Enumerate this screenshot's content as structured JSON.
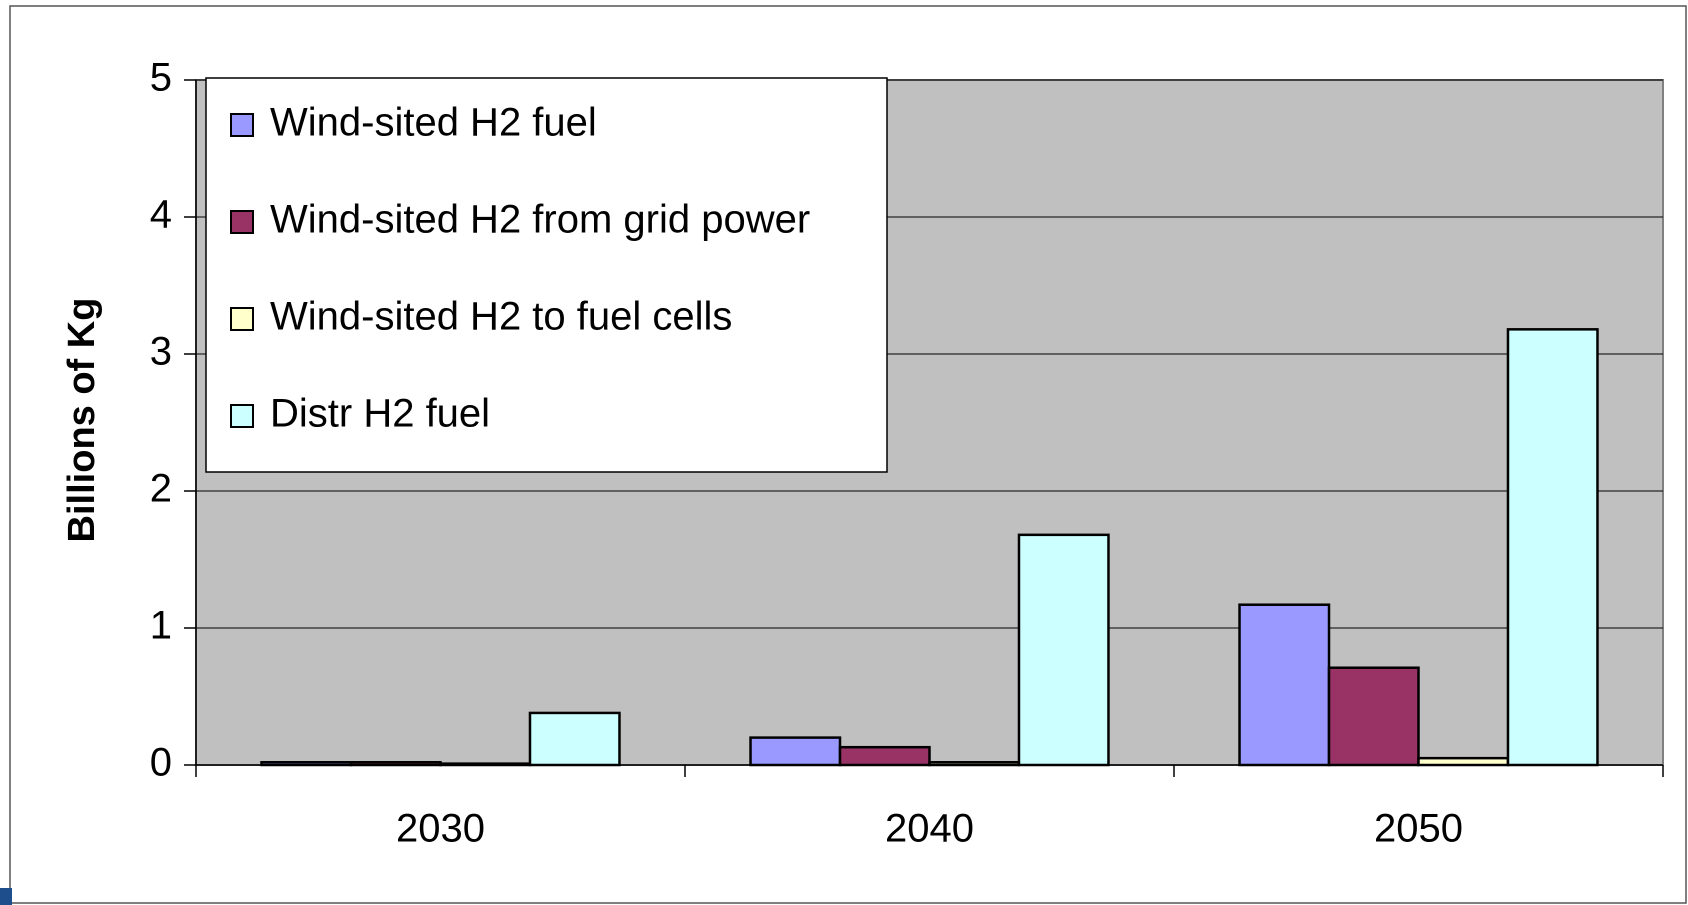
{
  "chart_data": {
    "type": "bar",
    "y_label": "Billions of Kg",
    "categories": [
      "2030",
      "2040",
      "2050"
    ],
    "series": [
      {
        "name": "Wind-sited H2 fuel",
        "color": "#9999ff",
        "values": [
          0.02,
          0.2,
          1.17
        ]
      },
      {
        "name": "Wind-sited H2 from grid power",
        "color": "#993366",
        "values": [
          0.02,
          0.13,
          0.71
        ]
      },
      {
        "name": "Wind-sited H2 to fuel cells",
        "color": "#ffffcc",
        "values": [
          0.01,
          0.02,
          0.05
        ]
      },
      {
        "name": "Distr H2 fuel",
        "color": "#ccffff",
        "values": [
          0.38,
          1.68,
          3.18
        ]
      }
    ],
    "ylim": [
      0,
      5
    ],
    "yticks": [
      0,
      1,
      2,
      3,
      4,
      5
    ],
    "grid": true,
    "legend": "upper left",
    "plot_background": "#c0c0c0"
  }
}
